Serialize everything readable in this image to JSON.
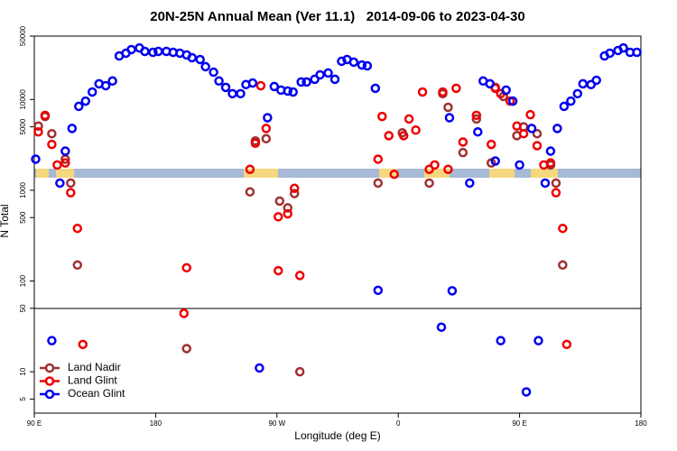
{
  "chart_data": {
    "type": "scatter",
    "title": "20N-25N Annual Mean (Ver 11.1)   2014-09-06 to 2023-04-30",
    "x_label": "Longitude (deg E)",
    "y_label": "N Total",
    "log_y": true,
    "legend": "lower left",
    "xlim": [
      90,
      540
    ],
    "xticks": [
      {
        "value": 90,
        "label": "90 E"
      },
      180,
      {
        "value": 270,
        "label": "90 W"
      },
      {
        "value": 360,
        "label": "0"
      },
      {
        "value": 450,
        "label": "90 E"
      },
      {
        "value": 540,
        "label": "180"
      }
    ],
    "ylim": [
      3.5,
      50000
    ],
    "yticks": [
      5,
      10,
      50,
      100,
      500,
      1000,
      5000,
      10000,
      50000
    ],
    "series": [
      {
        "name": "Land Nadir",
        "color": "#a03030",
        "x": [
          93,
          98,
          103,
          113,
          117,
          122,
          203,
          250,
          254,
          262,
          272,
          278,
          283,
          287,
          345,
          363,
          383,
          393,
          397,
          408,
          418,
          429,
          432,
          438,
          448,
          453,
          463,
          473,
          477,
          482
        ],
        "values": [
          5100,
          6500,
          4200,
          2200,
          1200,
          150,
          18,
          960,
          3500,
          3700,
          760,
          640,
          920,
          10,
          1200,
          4300,
          1200,
          11600,
          8200,
          2600,
          6100,
          2000,
          13600,
          10800,
          4000,
          5000,
          4200,
          1900,
          1200,
          150
        ]
      },
      {
        "name": "Land Glint",
        "color": "#ee0000",
        "x": [
          93,
          98,
          103,
          107,
          113,
          117,
          122,
          126,
          203,
          201,
          250,
          254,
          258,
          262,
          271,
          271,
          278,
          283,
          287,
          345,
          348,
          353,
          357,
          364,
          368,
          373,
          378,
          383,
          387,
          393,
          397,
          403,
          408,
          418,
          429,
          432,
          436,
          443,
          448,
          453,
          458,
          463,
          468,
          473,
          477,
          482,
          485
        ],
        "values": [
          4400,
          6700,
          3200,
          1900,
          2000,
          940,
          380,
          20,
          140,
          44,
          1700,
          3300,
          14200,
          4800,
          510,
          130,
          550,
          1050,
          115,
          2200,
          6500,
          4000,
          1500,
          4000,
          6100,
          4600,
          12100,
          1700,
          1900,
          12100,
          1700,
          13300,
          3400,
          6700,
          3200,
          13300,
          11600,
          9600,
          5100,
          4200,
          6800,
          3100,
          1900,
          2000,
          940,
          380,
          20
        ]
      },
      {
        "name": "Ocean Glint",
        "color": "#0000ee",
        "x": [
          91,
          103,
          109,
          113,
          118,
          123,
          128,
          133,
          138,
          143,
          148,
          153,
          158,
          162,
          168,
          172,
          178,
          182,
          188,
          193,
          198,
          203,
          207,
          213,
          217,
          223,
          227,
          232,
          237,
          243,
          247,
          252,
          257,
          263,
          268,
          273,
          278,
          282,
          288,
          292,
          298,
          302,
          308,
          313,
          318,
          322,
          327,
          333,
          337,
          343,
          345,
          392,
          398,
          400,
          413,
          419,
          423,
          428,
          432,
          436,
          440,
          445,
          450,
          455,
          459,
          464,
          469,
          473,
          478,
          483,
          488,
          493,
          497,
          503,
          507,
          513,
          517,
          523,
          527,
          532,
          537
        ],
        "values": [
          2200,
          22,
          1200,
          2700,
          4800,
          8400,
          9600,
          12100,
          14900,
          14200,
          16000,
          30200,
          32400,
          35500,
          37000,
          33900,
          33100,
          33900,
          33900,
          33100,
          32400,
          31000,
          28900,
          27600,
          23000,
          20000,
          16000,
          13600,
          11600,
          11600,
          14600,
          15200,
          11,
          6300,
          13900,
          12700,
          12400,
          12100,
          15600,
          15600,
          16700,
          18700,
          19600,
          16700,
          26400,
          27600,
          25800,
          24000,
          23500,
          13300,
          79,
          31,
          6300,
          78,
          1200,
          4400,
          16000,
          14900,
          2100,
          22,
          12700,
          9600,
          1900,
          6,
          4800,
          22,
          1200,
          2700,
          4800,
          8400,
          9600,
          11600,
          14900,
          14600,
          16300,
          30200,
          32400,
          34700,
          37000,
          33100,
          33100
        ]
      }
    ]
  }
}
